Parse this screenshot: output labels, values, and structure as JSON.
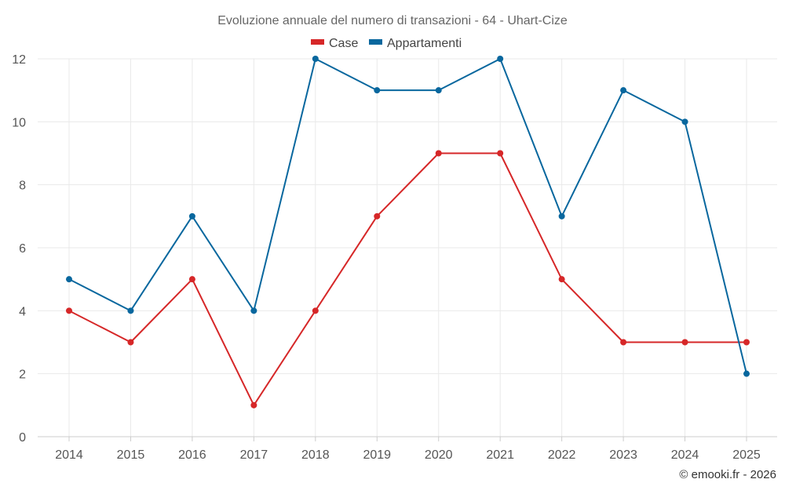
{
  "chart_data": {
    "type": "line",
    "title": "Evoluzione annuale del numero di transazioni - 64 - Uhart-Cize",
    "xlabel": "",
    "ylabel": "",
    "categories": [
      "2014",
      "2015",
      "2016",
      "2017",
      "2018",
      "2019",
      "2020",
      "2021",
      "2022",
      "2023",
      "2024",
      "2025"
    ],
    "ylim": [
      0,
      12
    ],
    "yticks": [
      0,
      2,
      4,
      6,
      8,
      10,
      12
    ],
    "grid": true,
    "legend_position": "top-center",
    "series": [
      {
        "name": "Case",
        "color": "#d62728",
        "values": [
          4,
          3,
          5,
          1,
          4,
          7,
          9,
          9,
          5,
          3,
          3,
          3
        ]
      },
      {
        "name": "Appartamenti",
        "color": "#08679e",
        "values": [
          5,
          4,
          7,
          4,
          12,
          11,
          11,
          12,
          7,
          11,
          10,
          2
        ]
      }
    ]
  },
  "credit": "© emooki.fr - 2026"
}
